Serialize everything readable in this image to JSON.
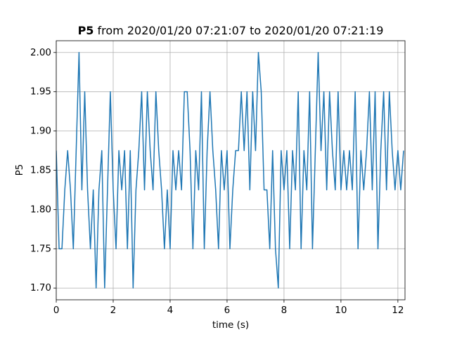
{
  "chart_data": {
    "type": "line",
    "title_variable": "P5",
    "title_range": "from 2020/01/20 07:21:07 to 2020/01/20 07:21:19",
    "xlabel": "time (s)",
    "ylabel": "P5",
    "xlim": [
      0,
      12.25
    ],
    "ylim": [
      1.685,
      2.015
    ],
    "xticks": [
      0,
      2,
      4,
      6,
      8,
      10,
      12
    ],
    "yticks": [
      {
        "value": 1.7,
        "label": "1.70"
      },
      {
        "value": 1.75,
        "label": "1.75"
      },
      {
        "value": 1.8,
        "label": "1.80"
      },
      {
        "value": 1.85,
        "label": "1.85"
      },
      {
        "value": 1.9,
        "label": "1.90"
      },
      {
        "value": 1.95,
        "label": "1.95"
      },
      {
        "value": 2.0,
        "label": "2.00"
      }
    ],
    "grid": true,
    "x": [
      0,
      0.1,
      0.2,
      0.3,
      0.4,
      0.5,
      0.6,
      0.7,
      0.8,
      0.9,
      1,
      1.1,
      1.2,
      1.3,
      1.4,
      1.5,
      1.6,
      1.7,
      1.8,
      1.9,
      2,
      2.1,
      2.2,
      2.3,
      2.4,
      2.5,
      2.6,
      2.7,
      2.8,
      2.9,
      3,
      3.1,
      3.2,
      3.3,
      3.4,
      3.5,
      3.6,
      3.7,
      3.8,
      3.9,
      4,
      4.1,
      4.2,
      4.3,
      4.4,
      4.5,
      4.6,
      4.7,
      4.8,
      4.9,
      5,
      5.1,
      5.2,
      5.3,
      5.4,
      5.5,
      5.6,
      5.7,
      5.8,
      5.9,
      6,
      6.1,
      6.2,
      6.3,
      6.4,
      6.5,
      6.6,
      6.7,
      6.8,
      6.9,
      7,
      7.1,
      7.2,
      7.3,
      7.4,
      7.5,
      7.6,
      7.7,
      7.8,
      7.9,
      8,
      8.1,
      8.2,
      8.3,
      8.4,
      8.5,
      8.6,
      8.7,
      8.8,
      8.9,
      9,
      9.1,
      9.2,
      9.3,
      9.4,
      9.5,
      9.6,
      9.7,
      9.8,
      9.9,
      10,
      10.1,
      10.2,
      10.3,
      10.4,
      10.5,
      10.6,
      10.7,
      10.8,
      10.9,
      11,
      11.1,
      11.2,
      11.3,
      11.4,
      11.5,
      11.6,
      11.7,
      11.8,
      11.9,
      12,
      12.1,
      12.2
    ],
    "series": [
      {
        "name": "P5",
        "color": "#1f77b4",
        "values": [
          1.875,
          1.75,
          1.75,
          1.825,
          1.875,
          1.825,
          1.75,
          1.875,
          2.0,
          1.825,
          1.95,
          1.825,
          1.75,
          1.825,
          1.7,
          1.825,
          1.875,
          1.7,
          1.825,
          1.95,
          1.825,
          1.75,
          1.875,
          1.825,
          1.875,
          1.75,
          1.875,
          1.7,
          1.825,
          1.875,
          1.95,
          1.825,
          1.95,
          1.875,
          1.825,
          1.95,
          1.875,
          1.825,
          1.75,
          1.825,
          1.75,
          1.875,
          1.825,
          1.875,
          1.825,
          1.95,
          1.95,
          1.875,
          1.75,
          1.875,
          1.825,
          1.95,
          1.75,
          1.875,
          1.95,
          1.875,
          1.825,
          1.75,
          1.875,
          1.825,
          1.875,
          1.75,
          1.825,
          1.875,
          1.875,
          1.95,
          1.875,
          1.95,
          1.825,
          1.95,
          1.875,
          2.0,
          1.95,
          1.825,
          1.825,
          1.75,
          1.875,
          1.75,
          1.7,
          1.875,
          1.825,
          1.875,
          1.75,
          1.875,
          1.825,
          1.95,
          1.75,
          1.875,
          1.825,
          1.95,
          1.75,
          1.875,
          2.0,
          1.875,
          1.95,
          1.825,
          1.95,
          1.875,
          1.825,
          1.95,
          1.825,
          1.875,
          1.825,
          1.875,
          1.825,
          1.95,
          1.75,
          1.875,
          1.825,
          1.875,
          1.95,
          1.825,
          1.95,
          1.75,
          1.875,
          1.95,
          1.825,
          1.95,
          1.875,
          1.825,
          1.875,
          1.825,
          1.875
        ]
      }
    ]
  }
}
